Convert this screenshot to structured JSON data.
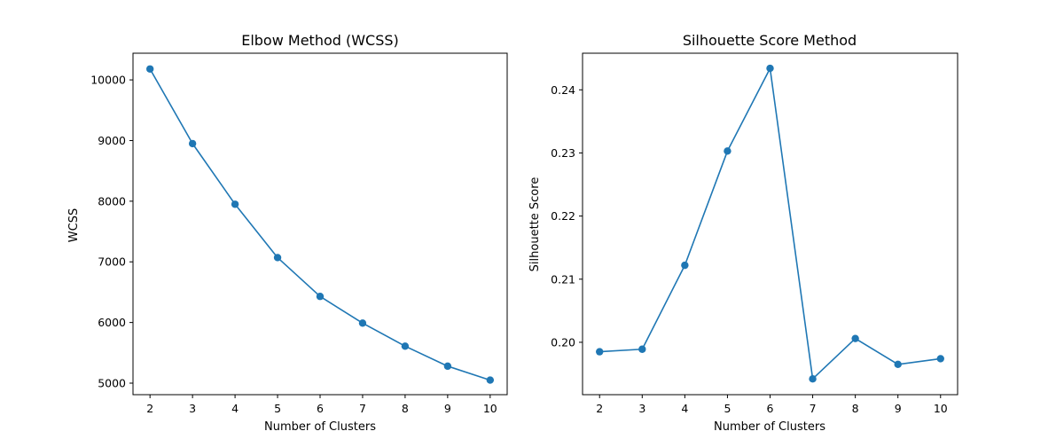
{
  "chart_data": [
    {
      "type": "line",
      "title": "Elbow Method (WCSS)",
      "xlabel": "Number of Clusters",
      "ylabel": "WCSS",
      "x": [
        2,
        3,
        4,
        5,
        6,
        7,
        8,
        9,
        10
      ],
      "series": [
        {
          "values": [
            10180,
            8950,
            7950,
            7070,
            6430,
            5990,
            5610,
            5280,
            5050
          ]
        }
      ],
      "xlim": [
        1.6,
        10.4
      ],
      "ylim": [
        4810,
        10440
      ],
      "xticks": [
        2,
        3,
        4,
        5,
        6,
        7,
        8,
        9,
        10
      ],
      "yticks": [
        5000,
        6000,
        7000,
        8000,
        9000,
        10000
      ],
      "xtick_labels": [
        "2",
        "3",
        "4",
        "5",
        "6",
        "7",
        "8",
        "9",
        "10"
      ],
      "ytick_labels": [
        "5000",
        "6000",
        "7000",
        "8000",
        "9000",
        "10000"
      ],
      "grid": false,
      "marker": "circle",
      "color": "#1f77b4"
    },
    {
      "type": "line",
      "title": "Silhouette Score Method",
      "xlabel": "Number of Clusters",
      "ylabel": "Silhouette Score",
      "x": [
        2,
        3,
        4,
        5,
        6,
        7,
        8,
        9,
        10
      ],
      "series": [
        {
          "values": [
            0.1985,
            0.1989,
            0.2122,
            0.2303,
            0.2434,
            0.1942,
            0.2006,
            0.1965,
            0.1974
          ]
        }
      ],
      "xlim": [
        1.6,
        10.4
      ],
      "ylim": [
        0.1917,
        0.2458
      ],
      "xticks": [
        2,
        3,
        4,
        5,
        6,
        7,
        8,
        9,
        10
      ],
      "yticks": [
        0.2,
        0.21,
        0.22,
        0.23,
        0.24
      ],
      "xtick_labels": [
        "2",
        "3",
        "4",
        "5",
        "6",
        "7",
        "8",
        "9",
        "10"
      ],
      "ytick_labels": [
        "0.20",
        "0.21",
        "0.22",
        "0.23",
        "0.24"
      ],
      "grid": false,
      "marker": "circle",
      "color": "#1f77b4"
    }
  ]
}
